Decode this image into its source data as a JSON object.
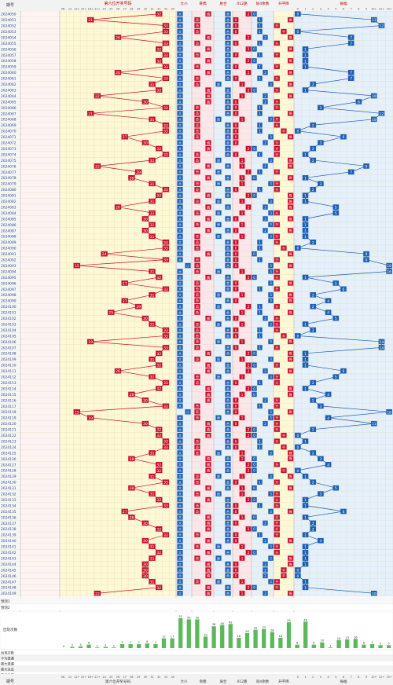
{
  "header": {
    "issue_label": "期号",
    "title_pos6": "第六位开奖号码",
    "groups": [
      "大小",
      "奇偶",
      "质合",
      "012路",
      "除4余数",
      "升平降",
      "振幅"
    ]
  },
  "footer": {
    "issue_label": "期号",
    "title_pos6": "第六位开奖号码",
    "groups": [
      "大小",
      "奇偶",
      "质合",
      "012路",
      "除4余数",
      "升平降",
      "振幅"
    ]
  },
  "subheader": {
    "pos6_sub": [
      "06-",
      "12",
      "12+",
      "15+",
      "18+",
      "21+",
      "24",
      "25",
      "26",
      "27",
      "28",
      "29",
      "30",
      "31",
      "32",
      "33",
      "34"
    ],
    "bigsmall": [
      "大",
      "小"
    ],
    "oddeven": [
      "奇",
      "偶"
    ],
    "primecomp": [
      "质",
      "合"
    ],
    "road": [
      "0",
      "1",
      "2"
    ],
    "mod4": [
      "0",
      "1",
      "2",
      "3"
    ],
    "updown": [
      "升",
      "平",
      "降"
    ],
    "amp": [
      "0",
      "1",
      "2",
      "3",
      "4",
      "5",
      "6",
      "7",
      "8",
      "9",
      "10+",
      "12+",
      "15+"
    ]
  },
  "issues": [
    "2024050",
    "2024051",
    "2024052",
    "2024053",
    "2024054",
    "2024055",
    "2024056",
    "2024057",
    "2024058",
    "2024059",
    "2024060",
    "2024061",
    "2024062",
    "2024063",
    "2024064",
    "2024065",
    "2024066",
    "2024067",
    "2024068",
    "2024069",
    "2024070",
    "2024071",
    "2024072",
    "2024073",
    "2024074",
    "2024075",
    "2024076",
    "2024077",
    "2024078",
    "2024079",
    "2024080",
    "2024081",
    "2024082",
    "2024083",
    "2024084",
    "2024085",
    "2024086",
    "2024087",
    "2024088",
    "2024089",
    "2024090",
    "2024091",
    "2024092",
    "2024093",
    "2024094",
    "2024095",
    "2024096",
    "2024097",
    "2024098",
    "2024099",
    "2024100",
    "2024101",
    "2024102",
    "2024103",
    "2024104",
    "2024105",
    "2024106",
    "2024107",
    "2024108",
    "2024109",
    "2024110",
    "2024111",
    "2024112",
    "2024113",
    "2024114",
    "2024115",
    "2024116",
    "2024117",
    "2024118",
    "2024119",
    "2024120",
    "2024121",
    "2024122",
    "2024123",
    "2024124",
    "2024125",
    "2024126",
    "2024127",
    "2024128",
    "2024129",
    "2024130",
    "2024131",
    "2024132",
    "2024133",
    "2024134",
    "2024135",
    "2024136",
    "2024137",
    "2024138",
    "2024139",
    "2024140",
    "2024141",
    "2024142",
    "2024143",
    "2024144",
    "2024145",
    "2024146",
    "2024147",
    "2024148",
    "2024149"
  ],
  "pos6_values": [
    32,
    21,
    33,
    33,
    26,
    33,
    32,
    33,
    32,
    33,
    26,
    33,
    31,
    32,
    22,
    30,
    33,
    21,
    31,
    33,
    33,
    27,
    30,
    32,
    33,
    31,
    22,
    29,
    28,
    31,
    33,
    32,
    31,
    26,
    31,
    30,
    31,
    30,
    31,
    33,
    33,
    24,
    33,
    15,
    31,
    32,
    27,
    33,
    31,
    27,
    29,
    25,
    30,
    31,
    33,
    33,
    19,
    33,
    32,
    31,
    32,
    26,
    31,
    33,
    32,
    28,
    30,
    33,
    15,
    19,
    30,
    32,
    32,
    33,
    33,
    31,
    28,
    32,
    32,
    31,
    33,
    28,
    31,
    32,
    33,
    27,
    28,
    30,
    32,
    33,
    30,
    31,
    32,
    31,
    30,
    30,
    30,
    31,
    32,
    22
  ],
  "amp_values": [
    0,
    11,
    12,
    0,
    7,
    7,
    1,
    1,
    1,
    1,
    7,
    7,
    2,
    1,
    10,
    8,
    3,
    12,
    10,
    2,
    0,
    6,
    3,
    2,
    1,
    2,
    9,
    7,
    1,
    3,
    2,
    1,
    1,
    5,
    5,
    1,
    1,
    1,
    1,
    2,
    0,
    9,
    9,
    18,
    16,
    1,
    5,
    6,
    2,
    4,
    2,
    4,
    5,
    1,
    2,
    0,
    14,
    14,
    1,
    1,
    1,
    6,
    5,
    2,
    1,
    4,
    2,
    3,
    18,
    4,
    11,
    2,
    0,
    1,
    0,
    2,
    3,
    4,
    0,
    1,
    2,
    5,
    3,
    1,
    1,
    6,
    1,
    2,
    2,
    1,
    3,
    1,
    1,
    1,
    1,
    0,
    0,
    1,
    1,
    10
  ],
  "stats": {
    "row_labels": [
      "出现次数",
      "平均遗漏",
      "最大遗漏",
      "最大连出",
      "欲出几率"
    ],
    "blank_rows": [
      "预测1",
      "预测2"
    ],
    "occurrence_label": "出现次数",
    "occurrence_values": [
      0,
      2,
      3,
      6,
      1,
      2,
      1,
      7,
      7,
      7,
      8,
      7,
      17,
      17,
      52,
      50,
      50,
      20,
      38,
      40,
      42,
      18,
      26,
      32,
      33,
      28,
      18,
      45,
      6,
      46,
      6,
      10,
      1,
      14,
      15,
      16,
      6,
      7,
      5,
      5
    ]
  },
  "chart_data": {
    "type": "table",
    "title": "第六位开奖号码",
    "x": [
      "2024050",
      "2024051",
      "2024052",
      "2024053",
      "2024054",
      "2024055",
      "2024056",
      "2024057",
      "2024058",
      "2024059",
      "2024060",
      "2024061",
      "2024062",
      "2024063",
      "2024064",
      "2024065",
      "2024066",
      "2024067",
      "2024068",
      "2024069",
      "2024070",
      "2024071",
      "2024072",
      "2024073",
      "2024074",
      "2024075",
      "2024076",
      "2024077",
      "2024078",
      "2024079",
      "2024080",
      "2024081",
      "2024082",
      "2024083",
      "2024084",
      "2024085",
      "2024086",
      "2024087",
      "2024088",
      "2024089",
      "2024090",
      "2024091",
      "2024092",
      "2024093",
      "2024094",
      "2024095",
      "2024096",
      "2024097",
      "2024098",
      "2024099",
      "2024100",
      "2024101",
      "2024102",
      "2024103",
      "2024104",
      "2024105",
      "2024106",
      "2024107",
      "2024108",
      "2024109",
      "2024110",
      "2024111",
      "2024112",
      "2024113",
      "2024114",
      "2024115",
      "2024116",
      "2024117",
      "2024118",
      "2024119",
      "2024120",
      "2024121",
      "2024122",
      "2024123",
      "2024124",
      "2024125",
      "2024126",
      "2024127",
      "2024128",
      "2024129",
      "2024130",
      "2024131",
      "2024132",
      "2024133",
      "2024134",
      "2024135",
      "2024136",
      "2024137",
      "2024138",
      "2024139",
      "2024140",
      "2024141",
      "2024142",
      "2024143",
      "2024144",
      "2024145",
      "2024146",
      "2024147",
      "2024148",
      "2024149"
    ],
    "series": [
      {
        "name": "第六位开奖号码",
        "values": [
          32,
          21,
          33,
          33,
          26,
          33,
          32,
          33,
          32,
          33,
          26,
          33,
          31,
          32,
          22,
          30,
          33,
          21,
          31,
          33,
          33,
          27,
          30,
          32,
          33,
          31,
          22,
          29,
          28,
          31,
          33,
          32,
          31,
          26,
          31,
          30,
          31,
          30,
          31,
          33,
          33,
          24,
          33,
          15,
          31,
          32,
          27,
          33,
          31,
          27,
          29,
          25,
          30,
          31,
          33,
          33,
          19,
          33,
          32,
          31,
          32,
          26,
          31,
          33,
          32,
          28,
          30,
          33,
          15,
          19,
          30,
          32,
          32,
          33,
          33,
          31,
          28,
          32,
          32,
          31,
          33,
          28,
          31,
          32,
          33,
          27,
          28,
          30,
          32,
          33,
          30,
          31,
          32,
          31,
          30,
          30,
          30,
          31,
          32,
          22
        ]
      },
      {
        "name": "振幅",
        "values": [
          0,
          11,
          12,
          0,
          7,
          7,
          1,
          1,
          1,
          1,
          7,
          7,
          2,
          1,
          10,
          8,
          3,
          12,
          10,
          2,
          0,
          6,
          3,
          2,
          1,
          2,
          9,
          7,
          1,
          3,
          2,
          1,
          1,
          5,
          5,
          1,
          1,
          1,
          1,
          2,
          0,
          9,
          9,
          18,
          16,
          1,
          5,
          6,
          2,
          4,
          2,
          4,
          5,
          1,
          2,
          0,
          14,
          14,
          1,
          1,
          1,
          6,
          5,
          2,
          1,
          4,
          2,
          3,
          18,
          4,
          11,
          2,
          0,
          1,
          0,
          2,
          3,
          4,
          0,
          1,
          2,
          5,
          3,
          1,
          1,
          6,
          1,
          2,
          2,
          1,
          3,
          1,
          1,
          1,
          1,
          0,
          0,
          1,
          1,
          10
        ]
      }
    ]
  },
  "colors": {
    "red": "#c8102e",
    "blue": "#1e5fb4",
    "yellow_bg": "#fdf8d6",
    "blue_bg": "#e6f0fa",
    "pink_bg": "#fbe7ea",
    "green": "#5cb85c",
    "header_text": "#c00000"
  }
}
